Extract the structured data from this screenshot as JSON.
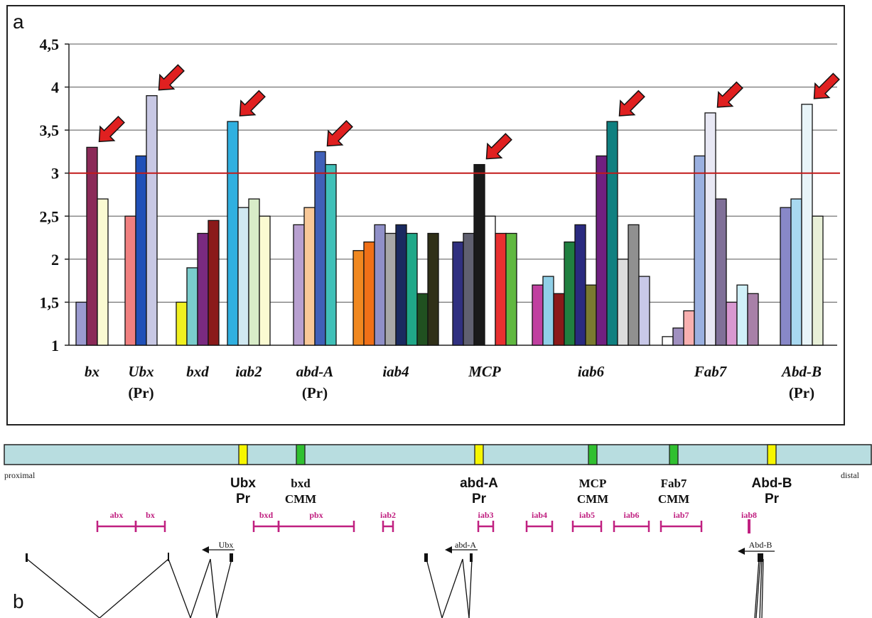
{
  "panel_a": {
    "label": "a",
    "threshold": 3,
    "threshold_color": "#c21a1a",
    "arrow_color": "#e02020"
  },
  "chart_data": {
    "type": "bar",
    "ylim": [
      1,
      4.5
    ],
    "yticks": [
      "1",
      "1,5",
      "2",
      "2,5",
      "3",
      "3,5",
      "4",
      "4,5"
    ],
    "ytick_values": [
      1,
      1.5,
      2,
      2.5,
      3,
      3.5,
      4,
      4.5
    ],
    "grid": true,
    "threshold": 3,
    "groups": [
      {
        "name": "bx",
        "sub": "",
        "arrow": true,
        "values": [
          1.5,
          3.3,
          2.7
        ],
        "colors": [
          "#9b9bd0",
          "#8b2a58",
          "#fafad2"
        ]
      },
      {
        "name": "Ubx",
        "sub": "(Pr)",
        "arrow": true,
        "values": [
          2.5,
          3.2,
          3.9
        ],
        "colors": [
          "#f08080",
          "#2050b8",
          "#c8c8e4"
        ]
      },
      {
        "name": "bxd",
        "sub": "",
        "arrow": false,
        "values": [
          1.5,
          1.9,
          2.3,
          2.45
        ],
        "colors": [
          "#f0f020",
          "#7acccc",
          "#7a2a80",
          "#8b1a1a"
        ]
      },
      {
        "name": "iab2",
        "sub": "",
        "arrow": true,
        "values": [
          3.6,
          2.6,
          2.7,
          2.5
        ],
        "colors": [
          "#30b0e0",
          "#d0e8f0",
          "#d8ecc8",
          "#fafad2"
        ]
      },
      {
        "name": "abd-A",
        "sub": "(Pr)",
        "arrow": true,
        "values": [
          2.4,
          2.6,
          3.25,
          3.1
        ],
        "colors": [
          "#b8a0d0",
          "#f8c898",
          "#4060b8",
          "#40c0b8"
        ]
      },
      {
        "name": "iab4",
        "sub": "",
        "arrow": false,
        "values": [
          2.1,
          2.2,
          2.4,
          2.3,
          2.4,
          2.3,
          1.6,
          2.3
        ],
        "colors": [
          "#f08820",
          "#f07018",
          "#9090c8",
          "#a8a8a8",
          "#1a2a60",
          "#20a888",
          "#205020",
          "#303018"
        ]
      },
      {
        "name": "MCP",
        "sub": "",
        "arrow": true,
        "values": [
          2.2,
          2.3,
          3.1,
          2.5,
          2.3,
          2.3
        ],
        "colors": [
          "#303080",
          "#606070",
          "#1a1a1a",
          "#ffffff",
          "#e83030",
          "#60b840"
        ]
      },
      {
        "name": "iab6",
        "sub": "",
        "arrow": true,
        "values": [
          1.7,
          1.8,
          1.6,
          2.2,
          2.4,
          1.7,
          3.2,
          3.6,
          2.0,
          2.4,
          1.8
        ],
        "colors": [
          "#c040a0",
          "#90d0e8",
          "#8b1a1a",
          "#208040",
          "#2a2a80",
          "#7a7a30",
          "#702080",
          "#108080",
          "#dcdcdc",
          "#909090",
          "#c8c8e8"
        ]
      },
      {
        "name": "Fab7",
        "sub": "",
        "arrow": true,
        "values": [
          1.1,
          1.2,
          1.4,
          3.2,
          3.7,
          2.7,
          1.5,
          1.7,
          1.6
        ],
        "colors": [
          "#ffffff",
          "#a090c0",
          "#f8b0b0",
          "#9ab0e0",
          "#e8e8f4",
          "#807098",
          "#d898d0",
          "#d0f0f8",
          "#a880a8"
        ]
      },
      {
        "name": "Abd-B",
        "sub": "(Pr)",
        "arrow": true,
        "values": [
          2.6,
          2.7,
          3.8,
          2.5
        ],
        "colors": [
          "#8888c8",
          "#a8d8f0",
          "#e8f4f8",
          "#e8f0d8"
        ]
      }
    ]
  },
  "panel_b": {
    "label": "b",
    "proximal": "proximal",
    "distal": "distal",
    "elements": [
      {
        "line1": "Ubx",
        "line2": "Pr",
        "color": "#f6f600"
      },
      {
        "line1": "bxd",
        "line2": "CMM",
        "color": "#30c030"
      },
      {
        "line1": "abd-A",
        "line2": "Pr",
        "color": "#f6f600"
      },
      {
        "line1": "MCP",
        "line2": "CMM",
        "color": "#30c030"
      },
      {
        "line1": "Fab7",
        "line2": "CMM",
        "color": "#30c030"
      },
      {
        "line1": "Abd-B",
        "line2": "Pr",
        "color": "#f6f600"
      }
    ],
    "regions": [
      "abx",
      "bx",
      "bxd",
      "pbx",
      "iab2",
      "iab3",
      "iab4",
      "iab5",
      "iab6",
      "iab7",
      "iab8"
    ],
    "region_color": "#c02080",
    "genes": [
      "Ubx",
      "abd-A",
      "Abd-B"
    ],
    "bar_color": "#b8dde0"
  }
}
